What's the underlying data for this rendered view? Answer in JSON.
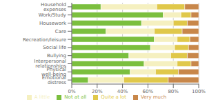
{
  "chart_data": {
    "type": "bar",
    "orientation": "horizontal",
    "stacked": true,
    "categories": [
      "Household expenses",
      "Work/Study",
      "Housework",
      "Care",
      "Recreation/leisure",
      "Social life",
      "Bullying",
      "Interpersonal relationships",
      "Physical well-being",
      "Emotional distress"
    ],
    "series": [
      {
        "name": "Not at all",
        "color": "#7bbf3e",
        "values": [
          23,
          72,
          55,
          27,
          65,
          62,
          45,
          57,
          46,
          13
        ]
      },
      {
        "name": "A little",
        "color": "#f5f0c0",
        "values": [
          44,
          14,
          25,
          38,
          18,
          19,
          33,
          26,
          20,
          28
        ]
      },
      {
        "name": "Quite a lot",
        "color": "#e0c84a",
        "values": [
          22,
          8,
          11,
          22,
          10,
          11,
          13,
          11,
          18,
          35
        ]
      },
      {
        "name": "Very much",
        "color": "#c8874a",
        "values": [
          11,
          6,
          9,
          13,
          7,
          8,
          9,
          6,
          16,
          24
        ]
      }
    ],
    "xlim": [
      0,
      100
    ],
    "xticks": [
      {
        "value": 0,
        "label": "0%"
      },
      {
        "value": 20,
        "label": "20%"
      },
      {
        "value": 40,
        "label": "40%"
      },
      {
        "value": 60,
        "label": "60%"
      },
      {
        "value": 80,
        "label": "80%"
      },
      {
        "value": 100,
        "label": "100%"
      }
    ],
    "grid": true,
    "legend": "bottom"
  }
}
